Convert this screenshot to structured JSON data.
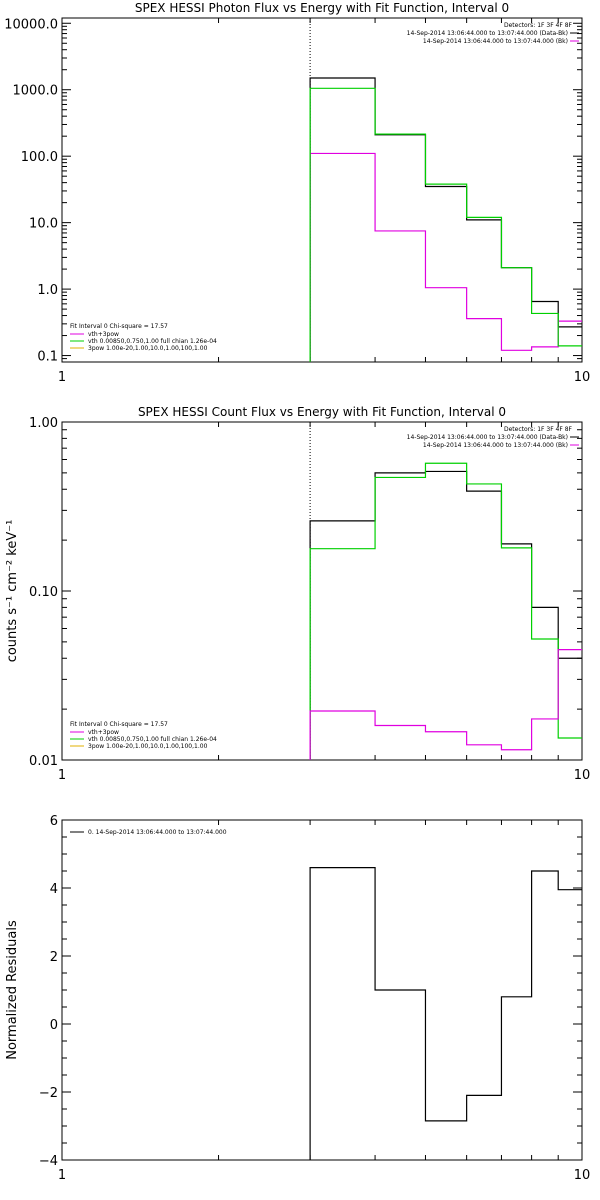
{
  "chart_data": [
    {
      "type": "line",
      "title": "SPEX HESSI Photon Flux vs Energy with Fit Function, Interval 0",
      "xlabel": "",
      "ylabel": "",
      "xscale": "log",
      "yscale": "log",
      "xlim": [
        1,
        10
      ],
      "ylim": [
        0.08,
        12000
      ],
      "x_ticks": [
        1,
        10
      ],
      "x_tick_labels": [
        "1",
        "10"
      ],
      "y_ticks": [
        0.1,
        1,
        10,
        100,
        1000,
        10000
      ],
      "y_tick_labels": [
        "0.1",
        "1.0",
        "10.0",
        "100.0",
        "1000.0",
        "10000.0"
      ],
      "vline_x": 3,
      "x_edges": [
        3,
        4,
        5,
        6,
        7,
        8,
        9,
        10
      ],
      "series": [
        {
          "name": "14-Sep-2014 13:06:44.000 to 13:07:44.000 (Data-Bk)",
          "color": "#000000",
          "values": [
            1500,
            210,
            35,
            11,
            2.1,
            0.65,
            0.27
          ]
        },
        {
          "name": "vth+3pow",
          "color": "#e000e0",
          "values": [
            110,
            7.5,
            1.05,
            0.36,
            0.12,
            0.135,
            0.33
          ]
        },
        {
          "name": "vth 0.00850,0.750,1.00  full chian 1.26e-04",
          "color": "#00d000",
          "values": [
            1050,
            215,
            38,
            12,
            2.1,
            0.43,
            0.14
          ]
        }
      ],
      "legend_top": {
        "header": "Detectors: 1F 3F 4F 8F",
        "entries": [
          {
            "label": "14-Sep-2014 13:06:44.000 to 13:07:44.000 (Data-Bk)",
            "color": "#000000"
          },
          {
            "label": "14-Sep-2014 13:06:44.000 to 13:07:44.000 (Bk)",
            "color": "#e000e0"
          }
        ]
      },
      "legend_bottom": {
        "header": "Fit Interval  0   Chi-square = 17.57",
        "entries": [
          {
            "label": "vth+3pow",
            "color": "#e000e0"
          },
          {
            "label": "vth 0.00850,0.750,1.00  full chian 1.26e-04",
            "color": "#00d000"
          },
          {
            "label": "3pow 1.00e-20,1.00,10.0,1.00,100,1.00",
            "color": "#e0b000"
          }
        ]
      }
    },
    {
      "type": "line",
      "title": "SPEX HESSI Count Flux vs Energy with Fit Function, Interval 0",
      "xlabel": "",
      "ylabel": "counts s⁻¹ cm⁻² keV⁻¹",
      "xscale": "log",
      "yscale": "log",
      "xlim": [
        1,
        10
      ],
      "ylim": [
        0.01,
        1.0
      ],
      "x_ticks": [
        1,
        10
      ],
      "x_tick_labels": [
        "1",
        "10"
      ],
      "y_ticks": [
        0.01,
        0.1,
        1.0
      ],
      "y_tick_labels": [
        "0.01",
        "0.10",
        "1.00"
      ],
      "vline_x": 3,
      "x_edges": [
        3,
        4,
        5,
        6,
        7,
        8,
        9,
        10
      ],
      "series": [
        {
          "name": "14-Sep-2014 13:06:44.000 to 13:07:44.000 (Data-Bk)",
          "color": "#000000",
          "values": [
            0.26,
            0.5,
            0.51,
            0.39,
            0.19,
            0.08,
            0.04
          ]
        },
        {
          "name": "vth 0.00850,0.750,1.00  full chian 1.26e-04",
          "color": "#00d000",
          "values": [
            0.178,
            0.47,
            0.57,
            0.43,
            0.18,
            0.052,
            0.0135
          ]
        },
        {
          "name": "vth+3pow",
          "color": "#e000e0",
          "values": [
            0.0195,
            0.016,
            0.0147,
            0.0123,
            0.0115,
            0.0175,
            0.045
          ]
        }
      ],
      "legend_top": {
        "header": "Detectors: 1F 3F 4F 8F",
        "entries": [
          {
            "label": "14-Sep-2014 13:06:44.000 to 13:07:44.000 (Data-Bk)",
            "color": "#000000"
          },
          {
            "label": "14-Sep-2014 13:06:44.000 to 13:07:44.000 (Bk)",
            "color": "#e000e0"
          }
        ]
      },
      "legend_bottom": {
        "header": "Fit Interval  0   Chi-square = 17.57",
        "entries": [
          {
            "label": "vth+3pow",
            "color": "#e000e0"
          },
          {
            "label": "vth 0.00850,0.750,1.00  full chian 1.26e-04",
            "color": "#00d000"
          },
          {
            "label": "3pow 1.00e-20,1.00,10.0,1.00,100,1.00",
            "color": "#e0b000"
          }
        ]
      }
    },
    {
      "type": "line",
      "title": "",
      "xlabel": "",
      "ylabel": "Normalized Residuals",
      "xscale": "log",
      "yscale": "linear",
      "xlim": [
        1,
        10
      ],
      "ylim": [
        -4,
        6
      ],
      "x_ticks": [
        1,
        10
      ],
      "x_tick_labels": [
        "1",
        "10"
      ],
      "y_ticks": [
        -4,
        -2,
        0,
        2,
        4,
        6
      ],
      "y_tick_labels": [
        "−4",
        "−2",
        "0",
        "2",
        "4",
        "6"
      ],
      "x_edges": [
        3,
        4,
        5,
        6,
        7,
        8,
        9,
        10
      ],
      "series": [
        {
          "name": "0. 14-Sep-2014 13:06:44.000 to 13:07:44.000",
          "color": "#000000",
          "values": [
            4.6,
            1.0,
            -2.85,
            -2.1,
            0.8,
            4.5,
            3.95
          ]
        }
      ],
      "legend_top": {
        "header": "",
        "entries": [
          {
            "label": "0. 14-Sep-2014 13:06:44.000 to 13:07:44.000",
            "color": "#000000"
          }
        ]
      }
    }
  ]
}
